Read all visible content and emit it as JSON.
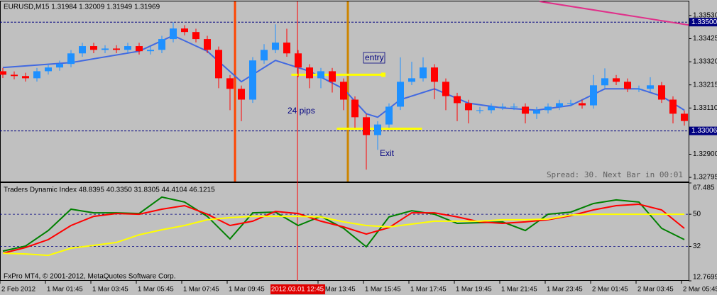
{
  "chart_data": [
    {
      "type": "candlestick",
      "title": "EURUSD,M15 1.31984 1.32009 1.31949 1.31969",
      "up_color": "#1e90ff",
      "down_color": "#ff0000",
      "open": [
        1.33277,
        1.33261,
        1.33255,
        1.33245,
        1.33277,
        1.33294,
        1.3331,
        1.33358,
        1.33391,
        1.33374,
        1.3338,
        1.33374,
        1.33391,
        1.33368,
        1.33374,
        1.33423,
        1.33471,
        1.33455,
        1.33423,
        1.33374,
        1.33245,
        1.33197,
        1.33148,
        1.33326,
        1.33374,
        1.33407,
        1.33358,
        1.33294,
        1.33245,
        1.33277,
        1.33229,
        1.33148,
        1.33068,
        1.32987,
        1.33035,
        1.33116,
        1.33229,
        1.33245,
        1.33294,
        1.33229,
        1.33164,
        1.33132,
        1.331,
        1.331,
        1.33116,
        1.33116,
        1.33116,
        1.33084,
        1.331,
        1.33116,
        1.33132,
        1.33132,
        1.33122,
        1.33213,
        1.33245,
        1.33229,
        1.33197,
        1.33197,
        1.33213,
        1.33148,
        1.33084
      ],
      "high": [
        1.33292,
        1.33276,
        1.3327,
        1.33292,
        1.33309,
        1.33325,
        1.33373,
        1.33406,
        1.33406,
        1.33395,
        1.33395,
        1.33406,
        1.33406,
        1.33389,
        1.33438,
        1.335,
        1.33486,
        1.3347,
        1.33438,
        1.33389,
        1.3326,
        1.33212,
        1.33341,
        1.334,
        1.3349,
        1.3347,
        1.33373,
        1.33309,
        1.33292,
        1.33292,
        1.33244,
        1.33163,
        1.33083,
        1.3305,
        1.33131,
        1.3334,
        1.3332,
        1.3334,
        1.33309,
        1.33244,
        1.33179,
        1.33147,
        1.33115,
        1.33131,
        1.33131,
        1.33131,
        1.33131,
        1.33115,
        1.33131,
        1.33147,
        1.33147,
        1.33147,
        1.3326,
        1.3329,
        1.3326,
        1.33244,
        1.33212,
        1.3325,
        1.33228,
        1.33163,
        1.33099
      ],
      "low": [
        1.33246,
        1.3324,
        1.3323,
        1.3323,
        1.33262,
        1.33279,
        1.33295,
        1.33343,
        1.33359,
        1.33359,
        1.33359,
        1.33359,
        1.33353,
        1.33353,
        1.33359,
        1.33408,
        1.3344,
        1.33408,
        1.33359,
        1.332,
        1.331,
        1.3305,
        1.33133,
        1.33311,
        1.33359,
        1.33343,
        1.3325,
        1.332,
        1.332,
        1.3318,
        1.331,
        1.3302,
        1.3283,
        1.3292,
        1.3302,
        1.33101,
        1.33214,
        1.3323,
        1.3315,
        1.331,
        1.3305,
        1.3304,
        1.33085,
        1.33085,
        1.33101,
        1.33101,
        1.3304,
        1.3306,
        1.33085,
        1.33101,
        1.33117,
        1.33107,
        1.33107,
        1.33198,
        1.33214,
        1.33182,
        1.33182,
        1.33182,
        1.33133,
        1.3304,
        1.3303
      ],
      "close": [
        1.33261,
        1.33255,
        1.33245,
        1.33277,
        1.33294,
        1.3331,
        1.33358,
        1.33391,
        1.33374,
        1.3338,
        1.33374,
        1.33391,
        1.33368,
        1.33374,
        1.33423,
        1.33471,
        1.33455,
        1.33423,
        1.33374,
        1.33245,
        1.33197,
        1.33148,
        1.33326,
        1.33374,
        1.33407,
        1.33358,
        1.33294,
        1.33245,
        1.33277,
        1.33229,
        1.33148,
        1.33068,
        1.32987,
        1.33035,
        1.33116,
        1.33229,
        1.33245,
        1.33294,
        1.33229,
        1.33164,
        1.33132,
        1.331,
        1.331,
        1.33116,
        1.33116,
        1.33116,
        1.33084,
        1.331,
        1.33116,
        1.33132,
        1.33132,
        1.33122,
        1.33213,
        1.33245,
        1.33229,
        1.33197,
        1.33197,
        1.33213,
        1.33148,
        1.33084,
        1.33051
      ],
      "lines": [
        {
          "color": "#4169e1",
          "x": [
            0,
            6,
            12,
            15,
            18,
            21,
            24,
            27,
            30,
            32,
            33,
            35,
            38,
            41,
            44,
            47,
            50,
            53,
            56,
            58,
            60
          ],
          "values": [
            1.33294,
            1.33316,
            1.33368,
            1.33439,
            1.33368,
            1.33229,
            1.33326,
            1.33277,
            1.33197,
            1.33084,
            1.33068,
            1.33148,
            1.33197,
            1.33132,
            1.3311,
            1.331,
            1.33122,
            1.33197,
            1.33197,
            1.33164,
            1.331
          ]
        },
        {
          "color": "#e0308a",
          "x": [
            47.25,
            60.375
          ],
          "values": [
            1.33594,
            1.33487
          ]
        },
        {
          "color": "#ffff00",
          "x": [
            25.4,
            33.5
          ],
          "values": [
            1.33261,
            1.33261
          ],
          "end_marker": true
        },
        {
          "color": "#ffff00",
          "x": [
            29.4,
            36.9
          ],
          "values": [
            1.33016,
            1.33016
          ]
        }
      ],
      "hlines": [
        {
          "value": 1.335,
          "label": "1.33500"
        },
        {
          "value": 1.33006,
          "label": "1.33006"
        }
      ],
      "vlines": [
        {
          "x": 20.44,
          "color": "#ff4500"
        },
        {
          "x": 25.94,
          "color": "#ff0000",
          "label": "2012.03.01 12:45"
        },
        {
          "x": 30.375,
          "color": "#cd8500"
        }
      ],
      "annotations": [
        "entry",
        "24 pips",
        "Exit",
        "Spread: 30. Next Bar in 00:01"
      ],
      "xlim": [
        -0.25,
        60.375
      ],
      "xticks": [
        {
          "value": -0.25,
          "label": "2 Feb 2012"
        },
        {
          "value": 3.75,
          "label": "1 Mar 01:45"
        },
        {
          "value": 7.75,
          "label": "1 Mar 03:45"
        },
        {
          "value": 11.75,
          "label": "1 Mar 05:45"
        },
        {
          "value": 15.75,
          "label": "1 Mar 07:45"
        },
        {
          "value": 19.75,
          "label": "1 Mar 09:45"
        },
        {
          "value": 27.75,
          "label": "1 Mar 13:45"
        },
        {
          "value": 31.75,
          "label": "1 Mar 15:45"
        },
        {
          "value": 35.75,
          "label": "1 Mar 17:45"
        },
        {
          "value": 39.75,
          "label": "1 Mar 19:45"
        },
        {
          "value": 43.75,
          "label": "1 Mar 21:45"
        },
        {
          "value": 47.75,
          "label": "1 Mar 23:45"
        },
        {
          "value": 51.75,
          "label": "2 Mar 01:45"
        },
        {
          "value": 55.75,
          "label": "2 Mar 03:45"
        },
        {
          "value": 59.75,
          "label": "2 Mar 05:45"
        }
      ],
      "ylim": [
        1.32776,
        1.33594
      ],
      "yticks": [
        {
          "value": 1.3353,
          "label": "1.33530"
        },
        {
          "value": 1.33425,
          "label": "1.33425"
        },
        {
          "value": 1.3332,
          "label": "1.33320"
        },
        {
          "value": 1.33215,
          "label": "1.33215"
        },
        {
          "value": 1.3311,
          "label": "1.33110"
        },
        {
          "value": 1.329,
          "label": "1.32900"
        },
        {
          "value": 1.32795,
          "label": "1.32795"
        }
      ]
    },
    {
      "type": "line",
      "title": "Traders Dynamic Index 48.8395 40.3350 31.8305 44.4104 46.1215",
      "footer": "FxPro MT4, © 2001-2012, MetaQuotes Software Corp.",
      "x": [
        0,
        2,
        4,
        6,
        8,
        10,
        12,
        14,
        16,
        18,
        20,
        22,
        24,
        26,
        28,
        30,
        32,
        34,
        36,
        38,
        40,
        42,
        44,
        46,
        48,
        50,
        52,
        54,
        56,
        58,
        60
      ],
      "series": [
        {
          "color": "#008000",
          "values": [
            29.4,
            32.2,
            40.9,
            52.8,
            50.8,
            50.8,
            50.4,
            59.6,
            56.8,
            48.8,
            36.2,
            50.8,
            51.2,
            43.7,
            48.8,
            42.1,
            31.8,
            48.5,
            52.0,
            50.0,
            44.9,
            45.3,
            45.7,
            40.9,
            50.0,
            51.2,
            56.0,
            58.0,
            56.8,
            42.1,
            35.8
          ]
        },
        {
          "color": "#ff0000",
          "values": [
            28.2,
            31.4,
            35.8,
            43.7,
            48.8,
            50.4,
            50.0,
            52.8,
            54.8,
            50.0,
            43.7,
            46.1,
            51.6,
            50.4,
            46.1,
            42.9,
            38.9,
            42.5,
            50.8,
            50.8,
            48.5,
            45.7,
            44.9,
            45.7,
            46.9,
            49.2,
            52.4,
            54.8,
            55.6,
            52.4,
            42.1
          ]
        },
        {
          "color": "#ffff00",
          "values": [
            28.2,
            27.8,
            27.0,
            31.0,
            32.6,
            34.2,
            38.5,
            41.3,
            43.7,
            46.9,
            48.1,
            48.8,
            48.8,
            48.8,
            48.5,
            45.7,
            43.7,
            42.9,
            44.5,
            46.1,
            46.1,
            46.1,
            46.9,
            46.9,
            47.3,
            49.6,
            50.0,
            50.0,
            50.0,
            50.0,
            50.0
          ]
        }
      ],
      "levels": [
        50,
        32
      ],
      "xlim": [
        -0.25,
        60.375
      ],
      "ylim": [
        12.7699,
        67.485
      ],
      "yticks": [
        67.485,
        50,
        32,
        12.7699
      ]
    }
  ]
}
